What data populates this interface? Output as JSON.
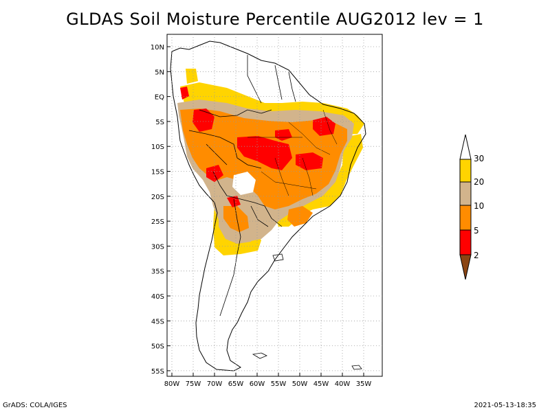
{
  "title": "GLDAS Soil Moisture Percentile AUG2012 lev = 1",
  "footer": {
    "left": "GrADS: COLA/IGES",
    "right": "2021-05-13-18:35"
  },
  "axes": {
    "lat_ticks": [
      "10N",
      "5N",
      "EQ",
      "5S",
      "10S",
      "15S",
      "20S",
      "25S",
      "30S",
      "35S",
      "40S",
      "45S",
      "50S",
      "55S"
    ],
    "lon_ticks": [
      "80W",
      "75W",
      "70W",
      "65W",
      "60W",
      "55W",
      "50W",
      "45W",
      "40W",
      "35W"
    ]
  },
  "colorbar": {
    "labels": [
      "30",
      "20",
      "10",
      "5",
      "2"
    ],
    "colors": {
      "above30": "#ffffff",
      "p20_30": "#ffd400",
      "p10_20": "#d2b48c",
      "p5_10": "#ff8c00",
      "p2_5": "#ff0000",
      "below2": "#8b4513"
    }
  },
  "map": {
    "region": "South America",
    "lat_range": [
      -56,
      11
    ],
    "lon_range": [
      -81,
      -33
    ],
    "grid": true
  }
}
